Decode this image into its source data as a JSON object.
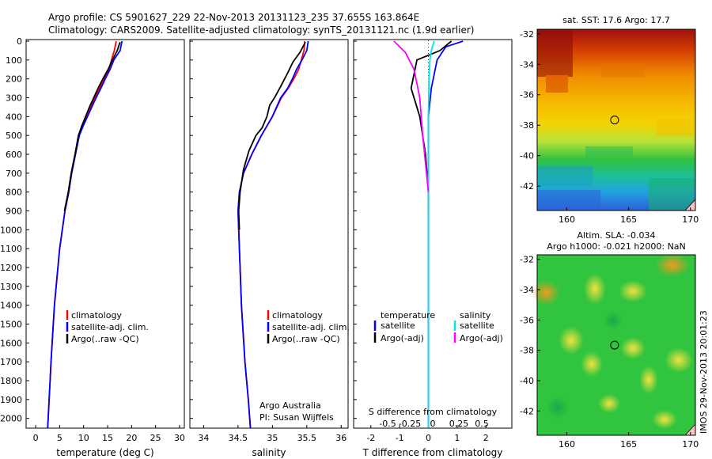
{
  "header": {
    "line1": "Argo profile: CS 5901627_229 22-Nov-2013 20131123_235 37.655S 163.864E",
    "line2": "Climatology: CARS2009. Satellite-adjusted climatology: synTS_20131121.nc (1.9d earlier)"
  },
  "footer": {
    "credit1": "Argo Australia",
    "credit2": "PI: Susan Wijffels",
    "stamp": "IMOS 29-Nov-2013 20:01:23"
  },
  "colors": {
    "climatology": "#ff0000",
    "satellite": "#0000ff",
    "argo": "#000000",
    "sal_satellite": "#00e5e5",
    "sal_argo": "#ff00ff"
  },
  "chart_data": [
    {
      "type": "line",
      "name": "temperature-profile",
      "xlabel": "temperature (deg C)",
      "ylabel": "",
      "xlim": [
        -2,
        31
      ],
      "ylim": [
        2060,
        0
      ],
      "y_reversed": true,
      "xticks": [
        0,
        5,
        10,
        15,
        20,
        25,
        30
      ],
      "yticks": [
        0,
        100,
        200,
        300,
        400,
        500,
        600,
        700,
        800,
        900,
        1000,
        1100,
        1200,
        1300,
        1400,
        1500,
        1600,
        1700,
        1800,
        1900,
        2000
      ],
      "legend": [
        "climatology",
        "satellite-adj. clim.",
        "Argo(..raw -QC)"
      ],
      "series": [
        {
          "name": "climatology",
          "x": [
            16.8,
            16.4,
            15.8,
            15.3,
            14.2,
            13.3,
            12.4,
            11.5,
            10.7,
            9.8,
            9.0,
            8.3,
            7.5,
            6.9,
            6.1,
            5.0,
            3.9,
            3.2,
            2.8,
            2.6,
            2.5
          ],
          "y": [
            0,
            50,
            100,
            150,
            200,
            250,
            300,
            350,
            400,
            450,
            500,
            600,
            700,
            800,
            900,
            1100,
            1400,
            1700,
            1900,
            2000,
            2050
          ]
        },
        {
          "name": "satellite-adj. clim.",
          "x": [
            18.0,
            17.6,
            16.3,
            15.5,
            14.5,
            13.6,
            12.6,
            11.7,
            10.8,
            9.9,
            9.1,
            8.3,
            7.5,
            6.9,
            6.1,
            5.0,
            3.9,
            3.2,
            2.8,
            2.6,
            2.5
          ],
          "y": [
            0,
            50,
            100,
            150,
            200,
            250,
            300,
            350,
            400,
            450,
            500,
            600,
            700,
            800,
            900,
            1100,
            1400,
            1700,
            1900,
            2000,
            2050
          ]
        },
        {
          "name": "Argo(..raw -QC)",
          "x": [
            17.6,
            17.0,
            16.0,
            15.1,
            14.0,
            13.0,
            12.1,
            11.2,
            10.4,
            9.6,
            8.9,
            8.2,
            7.4,
            6.8,
            6.0
          ],
          "y": [
            5,
            50,
            100,
            150,
            200,
            250,
            300,
            350,
            400,
            450,
            500,
            600,
            700,
            800,
            900
          ]
        }
      ]
    },
    {
      "type": "line",
      "name": "salinity-profile",
      "xlabel": "salinity",
      "ylabel": "",
      "xlim": [
        33.8,
        36.1
      ],
      "ylim": [
        2060,
        0
      ],
      "y_reversed": true,
      "xticks": [
        34,
        34.5,
        35,
        35.5,
        36
      ],
      "legend": [
        "climatology",
        "satellite-adj. clim.",
        "Argo(..raw -QC)"
      ],
      "series": [
        {
          "name": "climatology",
          "x": [
            35.47,
            35.46,
            35.42,
            35.38,
            35.31,
            35.23,
            35.13,
            35.0,
            34.84,
            34.7,
            34.58,
            34.52,
            34.5,
            34.52,
            34.55,
            34.6,
            34.65,
            34.68
          ],
          "y": [
            0,
            50,
            100,
            150,
            200,
            250,
            300,
            400,
            500,
            600,
            700,
            800,
            900,
            1100,
            1400,
            1700,
            1900,
            2050
          ]
        },
        {
          "name": "satellite-adj. clim.",
          "x": [
            35.52,
            35.5,
            35.43,
            35.35,
            35.29,
            35.22,
            35.12,
            35.0,
            34.84,
            34.7,
            34.58,
            34.52,
            34.5,
            34.52,
            34.55,
            34.6,
            34.65,
            34.68
          ],
          "y": [
            0,
            50,
            100,
            150,
            200,
            250,
            300,
            400,
            500,
            600,
            700,
            800,
            900,
            1100,
            1400,
            1700,
            1900,
            2050
          ]
        },
        {
          "name": "Argo(..raw -QC)",
          "x": [
            35.48,
            35.4,
            35.3,
            35.22,
            35.12,
            35.03,
            34.96,
            34.92,
            34.85,
            34.76,
            34.66,
            34.58,
            34.53,
            34.51,
            34.52
          ],
          "y": [
            5,
            60,
            110,
            170,
            240,
            300,
            340,
            400,
            460,
            500,
            580,
            680,
            800,
            900,
            1000
          ]
        }
      ]
    },
    {
      "type": "line",
      "name": "difference-profile",
      "xlabel": "T difference from climatology",
      "title": "S difference from climatology",
      "xlim": [
        -2.6,
        2.9
      ],
      "ylim": [
        2060,
        0
      ],
      "y_reversed": true,
      "xticks_bottom": [
        -2,
        -1,
        0,
        1,
        2
      ],
      "xticks_top_labels": [
        "-0.5",
        "-0.25",
        "0",
        "0.25",
        "0.5"
      ],
      "legend_left": {
        "title": "temperature",
        "items": [
          "satellite",
          "Argo(-adj)"
        ]
      },
      "legend_right": {
        "title": "salinity",
        "items": [
          "satellite",
          "Argo(-adj)"
        ]
      },
      "series": [
        {
          "name": "temperature satellite",
          "x": [
            1.2,
            0.6,
            0.3,
            0.1,
            0.0,
            0.0,
            0.0,
            0.0,
            0.0,
            0.0,
            0.0
          ],
          "y": [
            0,
            30,
            100,
            250,
            400,
            600,
            900,
            1200,
            1500,
            1800,
            2050
          ]
        },
        {
          "name": "temperature Argo(-adj)",
          "x": [
            0.8,
            0.4,
            -0.4,
            -0.6,
            -0.3,
            -0.1,
            0.0,
            0.0
          ],
          "y": [
            0,
            50,
            100,
            250,
            400,
            600,
            800,
            900
          ]
        },
        {
          "name": "salinity satellite",
          "x": [
            0.2,
            0.1,
            0.05,
            0.02,
            0.0,
            0.0,
            0.0
          ],
          "y": [
            0,
            50,
            100,
            200,
            400,
            1000,
            2050
          ]
        },
        {
          "name": "salinity Argo(-adj)",
          "x": [
            -1.2,
            -0.8,
            -0.5,
            -0.3,
            -0.2,
            -0.1,
            0.0
          ],
          "y": [
            0,
            60,
            150,
            300,
            500,
            650,
            800
          ]
        }
      ]
    },
    {
      "type": "heatmap",
      "name": "sst-map",
      "title": "sat. SST: 17.6  Argo: 17.7",
      "xticks": [
        160,
        165,
        170
      ],
      "yticks": [
        -32,
        -34,
        -36,
        -38,
        -40,
        -42
      ],
      "marker": {
        "lon": 163.864,
        "lat": -37.655
      }
    },
    {
      "type": "heatmap",
      "name": "sla-map",
      "title": "Altim. SLA: -0.034",
      "subtitle": "Argo h1000: -0.021  h2000: NaN",
      "xticks": [
        160,
        165,
        170
      ],
      "yticks": [
        -32,
        -34,
        -36,
        -38,
        -40,
        -42
      ],
      "marker": {
        "lon": 163.864,
        "lat": -37.655
      }
    }
  ]
}
